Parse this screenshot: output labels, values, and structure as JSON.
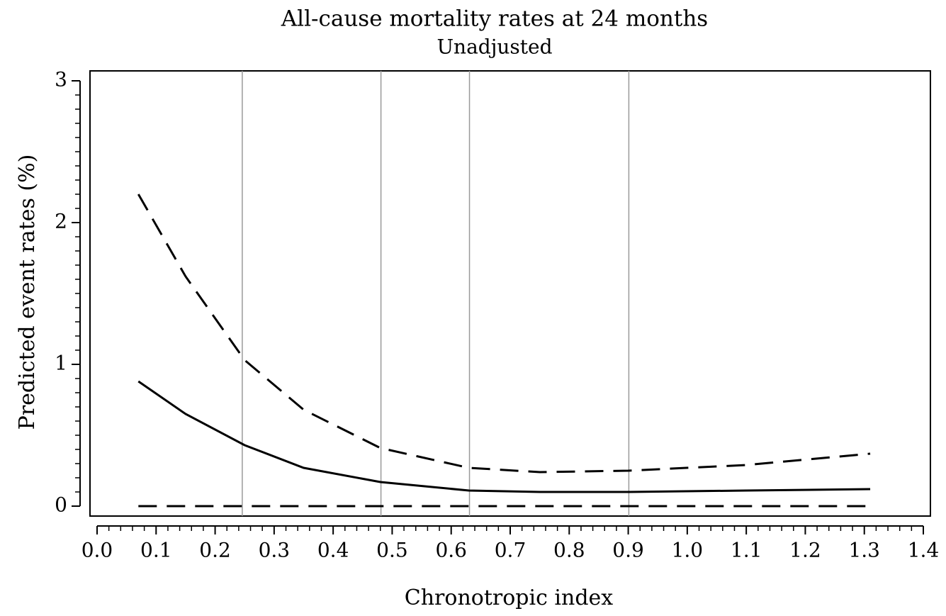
{
  "chart_data": {
    "type": "line",
    "title": "All-cause mortality rates at 24 months",
    "subtitle": "Unadjusted",
    "x_label": "Chronotropic index",
    "y_label": "Predicted event rates (%)",
    "x": [
      0.07,
      0.15,
      0.25,
      0.35,
      0.48,
      0.63,
      0.75,
      0.9,
      1.1,
      1.31
    ],
    "series": [
      {
        "color": "#000000",
        "dash": "solid",
        "values": [
          0.88,
          0.65,
          0.43,
          0.27,
          0.17,
          0.11,
          0.1,
          0.1,
          0.11,
          0.12
        ]
      },
      {
        "color": "#000000",
        "dash": "dashed",
        "values": [
          2.2,
          1.62,
          1.03,
          0.68,
          0.41,
          0.27,
          0.24,
          0.25,
          0.29,
          0.37
        ]
      },
      {
        "color": "#000000",
        "dash": "dashed",
        "values": [
          0,
          0,
          0,
          0,
          0,
          0,
          0,
          0,
          0,
          0
        ]
      }
    ],
    "reference_lines_x": [
      0.246,
      0.481,
      0.631,
      0.901
    ],
    "xlim": [
      -0.012,
      1.412
    ],
    "ylim": [
      -0.07,
      3.07
    ],
    "xticks": [
      {
        "value": 0,
        "label": "0.0"
      },
      0.1,
      0.2,
      0.3,
      0.4,
      0.5,
      0.6,
      0.7,
      0.8,
      0.9,
      {
        "value": 1,
        "label": "1.0"
      },
      1.1,
      1.2,
      1.3,
      1.4
    ],
    "yticks": [
      0,
      1,
      2,
      3
    ],
    "x_minor_divisions": 5,
    "y_minor_divisions": 10
  }
}
